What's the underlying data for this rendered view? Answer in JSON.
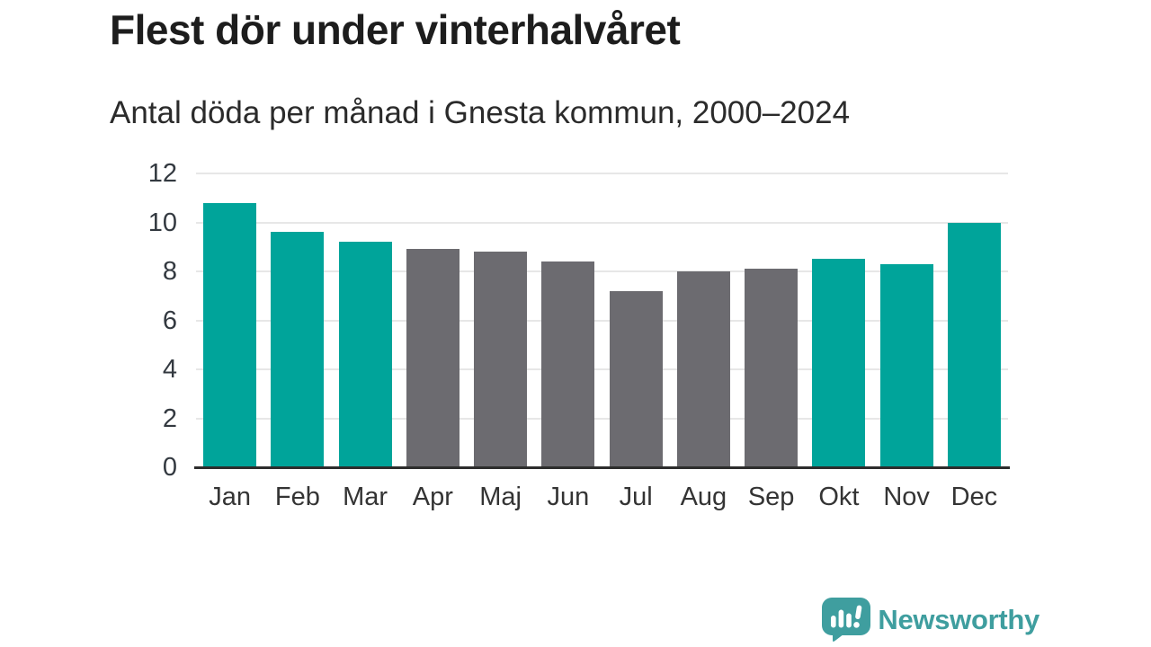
{
  "header": {
    "title": "Flest dör under vinterhalvåret",
    "subtitle": "Antal döda per månad i Gnesta kommun, 2000–2024"
  },
  "chart_data": {
    "type": "bar",
    "title": "Flest dör under vinterhalvåret",
    "subtitle": "Antal döda per månad i Gnesta kommun, 2000–2024",
    "categories": [
      "Jan",
      "Feb",
      "Mar",
      "Apr",
      "Maj",
      "Jun",
      "Jul",
      "Aug",
      "Sep",
      "Okt",
      "Nov",
      "Dec"
    ],
    "values": [
      10.8,
      9.6,
      9.2,
      8.9,
      8.8,
      8.4,
      7.2,
      8.0,
      8.1,
      8.5,
      8.3,
      10.0
    ],
    "highlighted": [
      true,
      true,
      true,
      false,
      false,
      false,
      false,
      false,
      false,
      true,
      true,
      true
    ],
    "xlabel": "",
    "ylabel": "",
    "ylim": [
      0,
      12
    ],
    "yticks": [
      0,
      2,
      4,
      6,
      8,
      10,
      12
    ],
    "grid": "horizontal-only",
    "legend": "none",
    "colors": {
      "highlight_bar": "#00a49a",
      "muted_bar": "#6c6b70",
      "gridline": "#e7e7e7",
      "axis_line": "#2d2d2d",
      "tick_label": "#333940"
    }
  },
  "branding": {
    "logo_text": "Newsworthy",
    "logo_color": "#3f9e9f",
    "logo_icon": "newsworthy-speech-bubble-bar-chart"
  }
}
